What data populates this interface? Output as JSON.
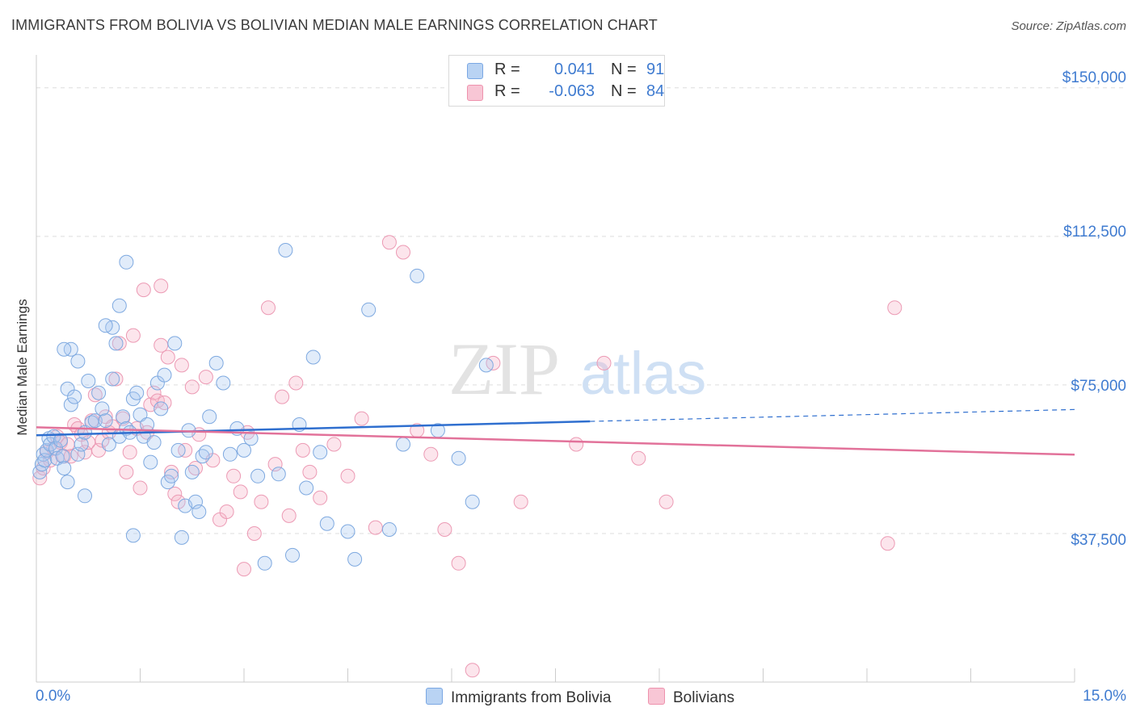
{
  "title": "IMMIGRANTS FROM BOLIVIA VS BOLIVIAN MEDIAN MALE EARNINGS CORRELATION CHART",
  "source": "Source: ZipAtlas.com",
  "watermark": {
    "zip": "ZIP",
    "atlas": "atlas"
  },
  "stats": [
    {
      "r_label": "R =",
      "r_value": "0.041",
      "n_label": "N =",
      "n_value": "91",
      "color": "#b9d3f3",
      "border": "#7aa7e3"
    },
    {
      "r_label": "R =",
      "r_value": "-0.063",
      "n_label": "N =",
      "n_value": "84",
      "color": "#f8c6d5",
      "border": "#ee92ad"
    }
  ],
  "legend": {
    "series1": "Immigrants from Bolivia",
    "series2": "Bolivians"
  },
  "axis": {
    "ylabel": "Median Male Earnings",
    "yticks": [
      "$150,000",
      "$112,500",
      "$75,000",
      "$37,500"
    ],
    "x_min_label": "0.0%",
    "x_max_label": "15.0%"
  },
  "colors": {
    "blue_fill": "rgba(168,200,240,0.35)",
    "blue_stroke": "#7ea9e0",
    "blue_line": "#2f6fcf",
    "pink_fill": "rgba(245,180,200,0.35)",
    "pink_stroke": "#ec9ab4",
    "pink_line": "#e2729a",
    "grid": "#dddddd",
    "axis": "#cccccc"
  },
  "chart_data": {
    "type": "scatter",
    "xlim": [
      0,
      15
    ],
    "ylim": [
      0,
      157500
    ],
    "ygrid": [
      37500,
      75000,
      112500,
      150000
    ],
    "series": [
      {
        "name": "Immigrants from Bolivia",
        "trend": {
          "x0": 0,
          "y0": 62300,
          "x1": 8.0,
          "y1": 65800,
          "dashed_to_x": 15,
          "dashed_to_y": 68800
        },
        "points": [
          [
            0.05,
            53000
          ],
          [
            0.08,
            55000
          ],
          [
            0.1,
            57500
          ],
          [
            0.12,
            56000
          ],
          [
            0.15,
            58500
          ],
          [
            0.18,
            61500
          ],
          [
            0.2,
            60000
          ],
          [
            0.25,
            62000
          ],
          [
            0.28,
            59000
          ],
          [
            0.3,
            56500
          ],
          [
            0.35,
            61000
          ],
          [
            0.38,
            57000
          ],
          [
            0.4,
            54000
          ],
          [
            0.45,
            74000
          ],
          [
            0.45,
            50500
          ],
          [
            0.5,
            84000
          ],
          [
            0.5,
            70000
          ],
          [
            0.55,
            72000
          ],
          [
            0.6,
            81000
          ],
          [
            0.6,
            57500
          ],
          [
            0.65,
            60000
          ],
          [
            0.7,
            63000
          ],
          [
            0.75,
            76000
          ],
          [
            0.8,
            65500
          ],
          [
            0.85,
            66000
          ],
          [
            0.9,
            73000
          ],
          [
            0.95,
            69000
          ],
          [
            1.0,
            66000
          ],
          [
            1.05,
            60000
          ],
          [
            1.1,
            89500
          ],
          [
            1.1,
            76500
          ],
          [
            1.15,
            85500
          ],
          [
            1.2,
            62000
          ],
          [
            1.25,
            67000
          ],
          [
            1.3,
            64000
          ],
          [
            1.35,
            63000
          ],
          [
            1.4,
            71500
          ],
          [
            1.45,
            73000
          ],
          [
            1.5,
            67500
          ],
          [
            1.55,
            62000
          ],
          [
            1.6,
            65000
          ],
          [
            1.65,
            55500
          ],
          [
            1.7,
            60500
          ],
          [
            1.75,
            75500
          ],
          [
            1.8,
            69000
          ],
          [
            1.85,
            77500
          ],
          [
            1.9,
            50500
          ],
          [
            1.95,
            52000
          ],
          [
            2.0,
            85500
          ],
          [
            2.05,
            58500
          ],
          [
            2.1,
            36500
          ],
          [
            2.15,
            44500
          ],
          [
            2.2,
            63500
          ],
          [
            2.25,
            53000
          ],
          [
            2.3,
            45500
          ],
          [
            2.35,
            43000
          ],
          [
            2.4,
            57000
          ],
          [
            2.45,
            58000
          ],
          [
            2.5,
            67000
          ],
          [
            2.6,
            80500
          ],
          [
            2.7,
            75500
          ],
          [
            2.8,
            57500
          ],
          [
            2.9,
            64000
          ],
          [
            3.0,
            58500
          ],
          [
            3.1,
            61500
          ],
          [
            3.2,
            52000
          ],
          [
            3.3,
            30000
          ],
          [
            3.5,
            52500
          ],
          [
            3.7,
            32000
          ],
          [
            3.8,
            65000
          ],
          [
            3.9,
            49000
          ],
          [
            4.0,
            82000
          ],
          [
            4.1,
            58000
          ],
          [
            4.2,
            40000
          ],
          [
            4.5,
            38000
          ],
          [
            4.6,
            31000
          ],
          [
            4.8,
            94000
          ],
          [
            5.1,
            38500
          ],
          [
            5.3,
            60000
          ],
          [
            5.5,
            102500
          ],
          [
            5.8,
            63500
          ],
          [
            6.1,
            56500
          ],
          [
            6.3,
            45500
          ],
          [
            6.5,
            80000
          ],
          [
            0.4,
            84000
          ],
          [
            1.3,
            106000
          ],
          [
            3.6,
            109000
          ],
          [
            1.0,
            90000
          ],
          [
            1.2,
            95000
          ],
          [
            0.7,
            47000
          ],
          [
            1.4,
            37000
          ]
        ]
      },
      {
        "name": "Bolivians",
        "trend": {
          "x0": 0,
          "y0": 64300,
          "x1": 15,
          "y1": 57400
        },
        "points": [
          [
            0.05,
            51500
          ],
          [
            0.1,
            54000
          ],
          [
            0.15,
            58000
          ],
          [
            0.2,
            56000
          ],
          [
            0.25,
            59000
          ],
          [
            0.3,
            62000
          ],
          [
            0.35,
            60500
          ],
          [
            0.4,
            57000
          ],
          [
            0.45,
            60000
          ],
          [
            0.55,
            65000
          ],
          [
            0.6,
            64000
          ],
          [
            0.65,
            62500
          ],
          [
            0.7,
            58000
          ],
          [
            0.75,
            60500
          ],
          [
            0.8,
            66000
          ],
          [
            0.85,
            72500
          ],
          [
            0.9,
            58500
          ],
          [
            0.95,
            61000
          ],
          [
            1.0,
            67000
          ],
          [
            1.05,
            63000
          ],
          [
            1.1,
            64500
          ],
          [
            1.15,
            76500
          ],
          [
            1.2,
            85500
          ],
          [
            1.25,
            66500
          ],
          [
            1.3,
            53000
          ],
          [
            1.35,
            58000
          ],
          [
            1.4,
            87500
          ],
          [
            1.45,
            64000
          ],
          [
            1.5,
            49000
          ],
          [
            1.55,
            99000
          ],
          [
            1.6,
            63000
          ],
          [
            1.65,
            70000
          ],
          [
            1.7,
            73000
          ],
          [
            1.75,
            71000
          ],
          [
            1.8,
            85000
          ],
          [
            1.85,
            70500
          ],
          [
            1.9,
            82000
          ],
          [
            1.95,
            53000
          ],
          [
            2.0,
            47500
          ],
          [
            2.05,
            45500
          ],
          [
            2.1,
            80000
          ],
          [
            2.15,
            58500
          ],
          [
            2.25,
            74500
          ],
          [
            2.35,
            62500
          ],
          [
            2.45,
            77000
          ],
          [
            2.55,
            56000
          ],
          [
            2.65,
            41000
          ],
          [
            2.75,
            43000
          ],
          [
            2.85,
            52000
          ],
          [
            2.95,
            48000
          ],
          [
            3.05,
            63000
          ],
          [
            3.15,
            37500
          ],
          [
            3.25,
            45500
          ],
          [
            3.35,
            94500
          ],
          [
            3.45,
            55000
          ],
          [
            3.55,
            72000
          ],
          [
            3.65,
            42000
          ],
          [
            3.75,
            75500
          ],
          [
            3.85,
            58500
          ],
          [
            3.95,
            53000
          ],
          [
            4.1,
            46500
          ],
          [
            4.3,
            60000
          ],
          [
            4.5,
            52000
          ],
          [
            4.7,
            66500
          ],
          [
            4.9,
            39000
          ],
          [
            5.1,
            111000
          ],
          [
            5.3,
            108500
          ],
          [
            5.5,
            63500
          ],
          [
            5.7,
            57500
          ],
          [
            5.9,
            38500
          ],
          [
            6.1,
            30000
          ],
          [
            6.3,
            3000
          ],
          [
            6.6,
            80500
          ],
          [
            7.0,
            45500
          ],
          [
            7.8,
            60000
          ],
          [
            8.2,
            80500
          ],
          [
            8.7,
            56500
          ],
          [
            9.1,
            45500
          ],
          [
            12.4,
            94500
          ],
          [
            12.3,
            35000
          ],
          [
            1.8,
            100000
          ],
          [
            2.3,
            54000
          ],
          [
            3.0,
            28500
          ],
          [
            0.5,
            57000
          ]
        ]
      }
    ]
  }
}
